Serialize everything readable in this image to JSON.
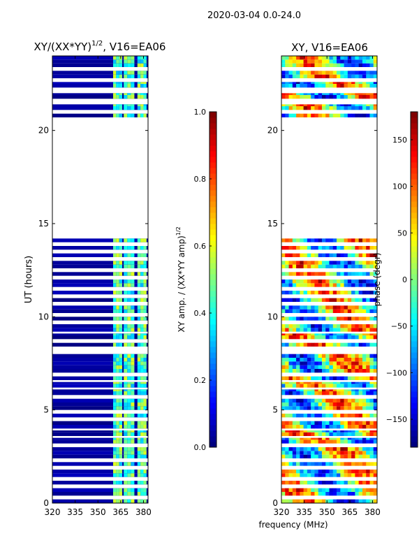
{
  "figure_title": "2020-03-04 0.0-24.0",
  "xlabel": "frequency (MHz)",
  "colorscale": "jet",
  "chart_data": [
    {
      "type": "heatmap",
      "title_main": "XY/(XX*YY)",
      "title_sup": "1/2",
      "title_suffix": ", V16=EA06",
      "ylabel": "UT (hours)",
      "xlim": [
        320,
        383
      ],
      "ylim": [
        0,
        24
      ],
      "xticks": [
        320,
        335,
        350,
        365,
        380
      ],
      "yticks": [
        0,
        5,
        10,
        15,
        20
      ],
      "zlim": [
        0.0,
        1.0
      ],
      "data_ranges_hours": [
        [
          0,
          3.0
        ],
        [
          3.2,
          3.5
        ],
        [
          3.6,
          3.9
        ],
        [
          4.0,
          6.1
        ],
        [
          6.2,
          6.5
        ],
        [
          6.6,
          6.8
        ],
        [
          7.0,
          8.0
        ],
        [
          8.4,
          8.6
        ],
        [
          8.8,
          9.1
        ],
        [
          9.2,
          14.2
        ],
        [
          20.7,
          21.4
        ],
        [
          21.7,
          22.0
        ],
        [
          22.3,
          22.6
        ],
        [
          22.8,
          24.0
        ]
      ],
      "flagged_hours": [
        0.3,
        0.8,
        1.3,
        1.8,
        2.2,
        4.6,
        5.0,
        5.7,
        9.6,
        10.1,
        10.6,
        11.0,
        11.4,
        12.0,
        12.5,
        13.0,
        13.4,
        13.8,
        20.9,
        23.3
      ],
      "band_mhz": [
        [
          360,
          366
        ],
        [
          367,
          374
        ],
        [
          376,
          382
        ]
      ],
      "band_level": 0.45,
      "background_level": 0.0,
      "colorbar": {
        "label_main": "XY amp. / (XX*YY amp)",
        "label_sup": "1/2",
        "ticks": [
          "0.0",
          "0.2",
          "0.4",
          "0.6",
          "0.8",
          "1.0"
        ],
        "tick_values": [
          0.0,
          0.2,
          0.4,
          0.6,
          0.8,
          1.0
        ]
      }
    },
    {
      "type": "heatmap",
      "title": "XY, V16=EA06",
      "xlim": [
        320,
        383
      ],
      "ylim": [
        0,
        24
      ],
      "xticks": [
        320,
        335,
        350,
        365,
        380
      ],
      "yticks": [
        0,
        5,
        10,
        15,
        20
      ],
      "zlim": [
        -180,
        180
      ],
      "data_ranges_hours": [
        [
          0,
          3.0
        ],
        [
          3.2,
          3.5
        ],
        [
          3.6,
          3.9
        ],
        [
          4.0,
          6.1
        ],
        [
          6.2,
          6.5
        ],
        [
          6.6,
          6.8
        ],
        [
          7.0,
          8.0
        ],
        [
          8.4,
          8.6
        ],
        [
          8.8,
          9.1
        ],
        [
          9.2,
          14.2
        ],
        [
          20.7,
          21.4
        ],
        [
          21.7,
          22.0
        ],
        [
          22.3,
          22.6
        ],
        [
          22.8,
          24.0
        ]
      ],
      "flagged_hours": [
        0.3,
        0.8,
        1.3,
        1.8,
        2.2,
        4.6,
        5.0,
        5.7,
        9.6,
        10.1,
        10.6,
        11.0,
        11.4,
        12.0,
        12.5,
        13.0,
        13.4,
        13.8,
        20.9,
        23.3
      ],
      "colorbar": {
        "label": "phase (degr)",
        "ticks": [
          "150",
          "100",
          "50",
          "0",
          "−50",
          "−100",
          "−150"
        ],
        "tick_values": [
          150,
          100,
          50,
          0,
          -50,
          -100,
          -150
        ]
      }
    }
  ]
}
